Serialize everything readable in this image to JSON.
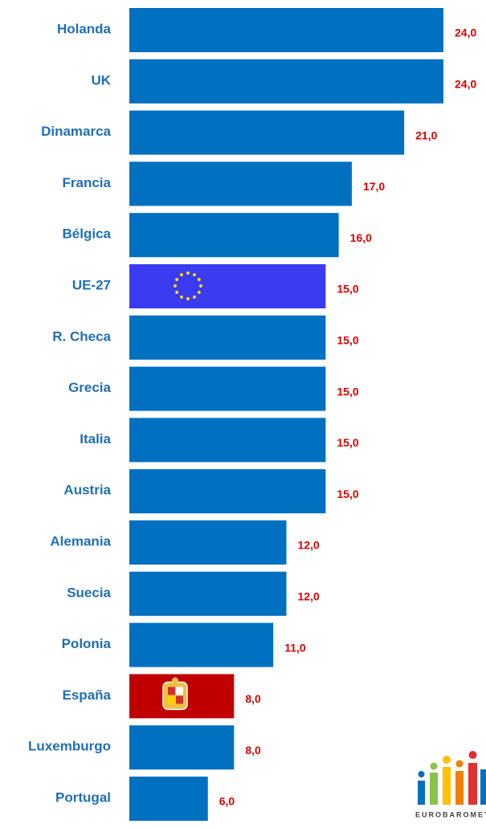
{
  "chart_data": {
    "type": "bar",
    "orientation": "horizontal",
    "categories": [
      "Holanda",
      "UK",
      "Dinamarca",
      "Francia",
      "Bélgica",
      "UE-27",
      "R. Checa",
      "Grecia",
      "Italia",
      "Austria",
      "Alemania",
      "Suecia",
      "Polonia",
      "España",
      "Luxemburgo",
      "Portugal"
    ],
    "values": [
      24,
      24,
      21,
      17,
      16,
      15,
      15,
      15,
      15,
      15,
      12,
      12,
      11,
      8,
      8,
      6
    ],
    "value_labels": [
      "24,0",
      "24,0",
      "21,0",
      "17,0",
      "16,0",
      "15,0",
      "15,0",
      "15,0",
      "15,0",
      "15,0",
      "12,0",
      "12,0",
      "11,0",
      "8,0",
      "8,0",
      "6,0"
    ],
    "colors": [
      "#0070c0",
      "#0070c0",
      "#0070c0",
      "#0070c0",
      "#0070c0",
      "#3b3bf2",
      "#0070c0",
      "#0070c0",
      "#0070c0",
      "#0070c0",
      "#0070c0",
      "#0070c0",
      "#0070c0",
      "#c00000",
      "#0070c0",
      "#0070c0"
    ],
    "xlim": [
      0,
      24
    ],
    "logo_text": "EUROBAROMET"
  }
}
